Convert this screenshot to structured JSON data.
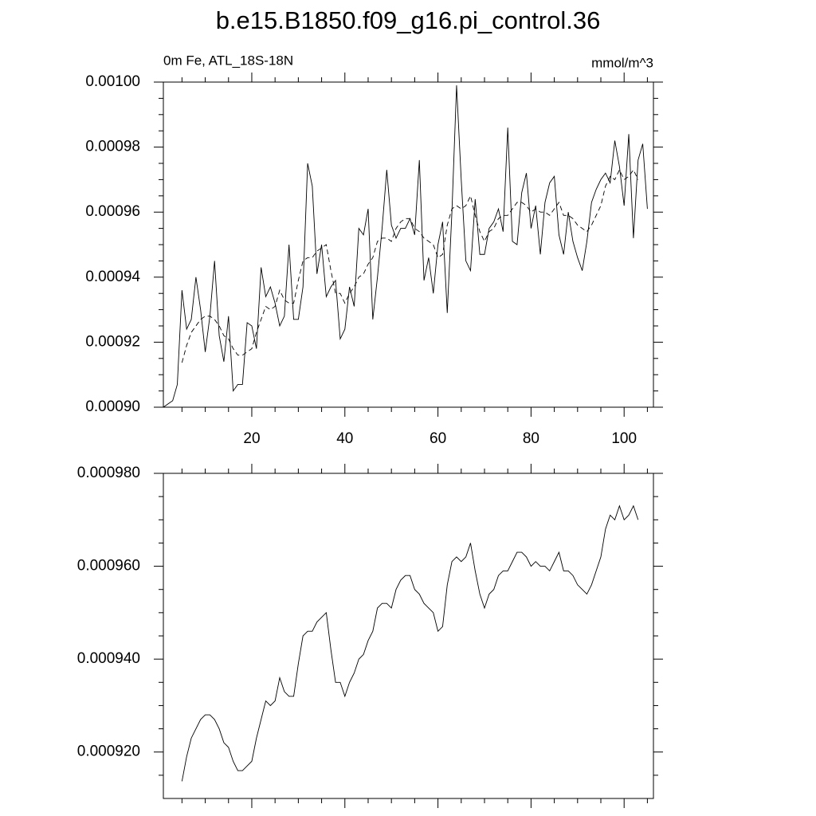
{
  "chart_data": [
    {
      "type": "line",
      "title": "b.e15.B1850.f09_g16.pi_control.36",
      "left_label": "0m Fe, ATL_18S-18N",
      "right_label": "mmol/m^3",
      "xlim": [
        1,
        106.3
      ],
      "xticks": [
        20,
        40,
        60,
        80,
        100
      ],
      "xminorticks": [
        5,
        10,
        15,
        25,
        30,
        35,
        45,
        50,
        55,
        65,
        70,
        75,
        85,
        90,
        95,
        105
      ],
      "show_xtick_labels": true,
      "ylim": [
        0.0009,
        0.001
      ],
      "yticks": [
        {
          "value": 0.0009,
          "label": "0.00090"
        },
        {
          "value": 0.00092,
          "label": "0.00092"
        },
        {
          "value": 0.00094,
          "label": "0.00094"
        },
        {
          "value": 0.00096,
          "label": "0.00096"
        },
        {
          "value": 0.00098,
          "label": "0.00098"
        },
        {
          "value": 0.001,
          "label": "0.00100"
        }
      ],
      "yminorticks": [
        0.000905,
        0.00091,
        0.000915,
        0.000925,
        0.00093,
        0.000935,
        0.000945,
        0.00095,
        0.000955,
        0.000965,
        0.00097,
        0.000975,
        0.000985,
        0.00099,
        0.000995
      ],
      "series": [
        {
          "color": "#000000",
          "dash": false,
          "x": [
            1,
            2,
            3,
            4,
            5,
            6,
            7,
            8,
            9,
            10,
            11,
            12,
            13,
            14,
            15,
            16,
            17,
            18,
            19,
            20,
            21,
            22,
            23,
            24,
            25,
            26,
            27,
            28,
            29,
            30,
            31,
            32,
            33,
            34,
            35,
            36,
            37,
            38,
            39,
            40,
            41,
            42,
            43,
            44,
            45,
            46,
            47,
            48,
            49,
            50,
            51,
            52,
            53,
            54,
            55,
            56,
            57,
            58,
            59,
            60,
            61,
            62,
            63,
            64,
            65,
            66,
            67,
            68,
            69,
            70,
            71,
            72,
            73,
            74,
            75,
            76,
            77,
            78,
            79,
            80,
            81,
            82,
            83,
            84,
            85,
            86,
            87,
            88,
            89,
            90,
            91,
            92,
            93,
            94,
            95,
            96,
            97,
            98,
            99,
            100,
            101,
            102,
            103,
            104,
            105
          ],
          "values": [
            0.0009,
            0.000901,
            0.000902,
            0.000907,
            0.000936,
            0.000924,
            0.000927,
            0.00094,
            0.00093,
            0.000917,
            0.000928,
            0.000945,
            0.000922,
            0.000914,
            0.000928,
            0.000905,
            0.000907,
            0.000907,
            0.000926,
            0.000925,
            0.000918,
            0.000943,
            0.000934,
            0.000937,
            0.000932,
            0.000925,
            0.000928,
            0.00095,
            0.000927,
            0.000927,
            0.000937,
            0.000975,
            0.000968,
            0.000941,
            0.00095,
            0.000934,
            0.000937,
            0.000939,
            0.000921,
            0.000924,
            0.000937,
            0.000931,
            0.000955,
            0.000953,
            0.000961,
            0.000927,
            0.00094,
            0.000955,
            0.000973,
            0.000956,
            0.000952,
            0.000955,
            0.000955,
            0.000958,
            0.000953,
            0.000976,
            0.000939,
            0.000946,
            0.000935,
            0.00095,
            0.000957,
            0.000929,
            0.00096,
            0.000999,
            0.00097,
            0.000945,
            0.000942,
            0.000964,
            0.000947,
            0.000947,
            0.000955,
            0.000957,
            0.000961,
            0.000954,
            0.000986,
            0.000951,
            0.00095,
            0.000966,
            0.000972,
            0.000955,
            0.000962,
            0.000947,
            0.000963,
            0.000969,
            0.000971,
            0.000953,
            0.000947,
            0.00096,
            0.000951,
            0.000946,
            0.000942,
            0.000951,
            0.000963,
            0.000967,
            0.00097,
            0.000972,
            0.000969,
            0.000982,
            0.000974,
            0.000962,
            0.000984,
            0.000952,
            0.000976,
            0.000981,
            0.000961
          ]
        },
        {
          "color": "#000000",
          "dash": true,
          "x": [
            5,
            6,
            7,
            8,
            9,
            10,
            11,
            12,
            13,
            14,
            15,
            16,
            17,
            18,
            19,
            20,
            21,
            22,
            23,
            24,
            25,
            26,
            27,
            28,
            29,
            30,
            31,
            32,
            33,
            34,
            35,
            36,
            37,
            38,
            39,
            40,
            41,
            42,
            43,
            44,
            45,
            46,
            47,
            48,
            49,
            50,
            51,
            52,
            53,
            54,
            55,
            56,
            57,
            58,
            59,
            60,
            61,
            62,
            63,
            64,
            65,
            66,
            67,
            68,
            69,
            70,
            71,
            72,
            73,
            74,
            75,
            76,
            77,
            78,
            79,
            80,
            81,
            82,
            83,
            84,
            85,
            86,
            87,
            88,
            89,
            90,
            91,
            92,
            93,
            94,
            95,
            96,
            97,
            98,
            99,
            100,
            101,
            102,
            103
          ],
          "values": [
            0.0009137,
            0.000919,
            0.000923,
            0.000925,
            0.000927,
            0.000928,
            0.000928,
            0.000927,
            0.000925,
            0.000922,
            0.000921,
            0.000918,
            0.000916,
            0.000916,
            0.000917,
            0.000918,
            0.000923,
            0.000927,
            0.000931,
            0.00093,
            0.000931,
            0.000936,
            0.000933,
            0.000932,
            0.000932,
            0.000939,
            0.000945,
            0.000946,
            0.000946,
            0.000948,
            0.000949,
            0.00095,
            0.000942,
            0.000935,
            0.000935,
            0.000932,
            0.000935,
            0.000937,
            0.00094,
            0.000941,
            0.000944,
            0.000946,
            0.000951,
            0.000952,
            0.000952,
            0.000951,
            0.000955,
            0.000957,
            0.000958,
            0.000958,
            0.000955,
            0.000954,
            0.000952,
            0.000951,
            0.00095,
            0.000946,
            0.000947,
            0.000956,
            0.000961,
            0.000962,
            0.000961,
            0.000962,
            0.000965,
            0.000959,
            0.000954,
            0.000951,
            0.000954,
            0.000955,
            0.000958,
            0.000959,
            0.000959,
            0.000961,
            0.000963,
            0.000963,
            0.000962,
            0.00096,
            0.000961,
            0.00096,
            0.00096,
            0.000959,
            0.000961,
            0.000963,
            0.000959,
            0.000959,
            0.000958,
            0.000956,
            0.000955,
            0.000954,
            0.000956,
            0.000959,
            0.000962,
            0.000968,
            0.000971,
            0.00097,
            0.000973,
            0.00097,
            0.000971,
            0.000973,
            0.00097
          ]
        }
      ]
    },
    {
      "type": "line",
      "xlim": [
        1,
        106.3
      ],
      "xticks": [
        20,
        40,
        60,
        80,
        100
      ],
      "xminorticks": [
        5,
        10,
        15,
        25,
        30,
        35,
        45,
        50,
        55,
        65,
        70,
        75,
        85,
        90,
        95,
        105
      ],
      "show_xtick_labels": false,
      "ylim": [
        0.00091,
        0.00098
      ],
      "yticks": [
        {
          "value": 0.00092,
          "label": "0.000920"
        },
        {
          "value": 0.00094,
          "label": "0.000940"
        },
        {
          "value": 0.00096,
          "label": "0.000960"
        },
        {
          "value": 0.00098,
          "label": "0.000980"
        }
      ],
      "yminorticks": [
        0.000915,
        0.000925,
        0.00093,
        0.000935,
        0.000945,
        0.00095,
        0.000955,
        0.000965,
        0.00097,
        0.000975
      ],
      "series": [
        {
          "color": "#000000",
          "dash": false,
          "x": [
            5,
            6,
            7,
            8,
            9,
            10,
            11,
            12,
            13,
            14,
            15,
            16,
            17,
            18,
            19,
            20,
            21,
            22,
            23,
            24,
            25,
            26,
            27,
            28,
            29,
            30,
            31,
            32,
            33,
            34,
            35,
            36,
            37,
            38,
            39,
            40,
            41,
            42,
            43,
            44,
            45,
            46,
            47,
            48,
            49,
            50,
            51,
            52,
            53,
            54,
            55,
            56,
            57,
            58,
            59,
            60,
            61,
            62,
            63,
            64,
            65,
            66,
            67,
            68,
            69,
            70,
            71,
            72,
            73,
            74,
            75,
            76,
            77,
            78,
            79,
            80,
            81,
            82,
            83,
            84,
            85,
            86,
            87,
            88,
            89,
            90,
            91,
            92,
            93,
            94,
            95,
            96,
            97,
            98,
            99,
            100,
            101,
            102,
            103
          ],
          "values": [
            0.0009137,
            0.000919,
            0.000923,
            0.000925,
            0.000927,
            0.000928,
            0.000928,
            0.000927,
            0.000925,
            0.000922,
            0.000921,
            0.000918,
            0.000916,
            0.000916,
            0.000917,
            0.000918,
            0.000923,
            0.000927,
            0.000931,
            0.00093,
            0.000931,
            0.000936,
            0.000933,
            0.000932,
            0.000932,
            0.000939,
            0.000945,
            0.000946,
            0.000946,
            0.000948,
            0.000949,
            0.00095,
            0.000942,
            0.000935,
            0.000935,
            0.000932,
            0.000935,
            0.000937,
            0.00094,
            0.000941,
            0.000944,
            0.000946,
            0.000951,
            0.000952,
            0.000952,
            0.000951,
            0.000955,
            0.000957,
            0.000958,
            0.000958,
            0.000955,
            0.000954,
            0.000952,
            0.000951,
            0.00095,
            0.000946,
            0.000947,
            0.000956,
            0.000961,
            0.000962,
            0.000961,
            0.000962,
            0.000965,
            0.000959,
            0.000954,
            0.000951,
            0.000954,
            0.000955,
            0.000958,
            0.000959,
            0.000959,
            0.000961,
            0.000963,
            0.000963,
            0.000962,
            0.00096,
            0.000961,
            0.00096,
            0.00096,
            0.000959,
            0.000961,
            0.000963,
            0.000959,
            0.000959,
            0.000958,
            0.000956,
            0.000955,
            0.000954,
            0.000956,
            0.000959,
            0.000962,
            0.000968,
            0.000971,
            0.00097,
            0.000973,
            0.00097,
            0.000971,
            0.000973,
            0.00097
          ]
        }
      ]
    }
  ]
}
